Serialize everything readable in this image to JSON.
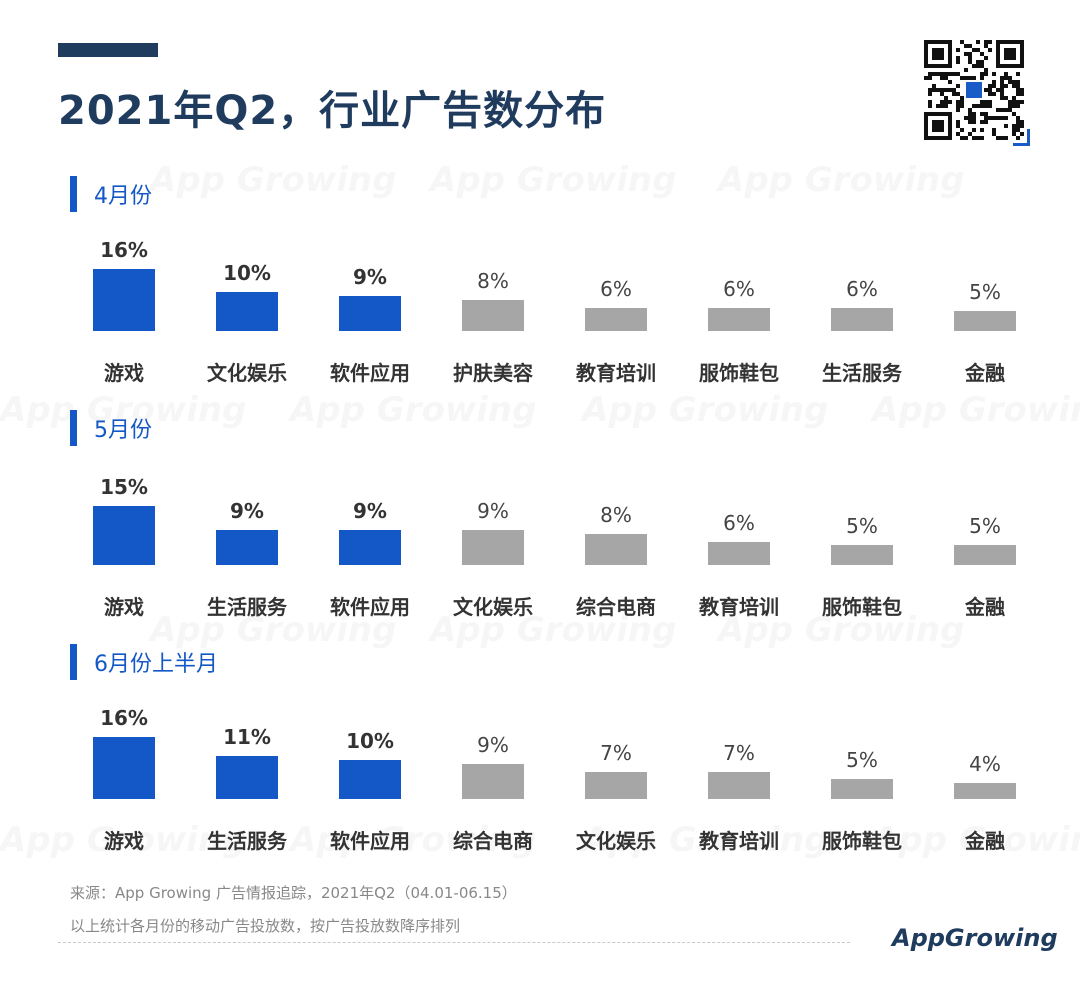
{
  "title": "2021年Q2，行业广告数分布",
  "watermark_text": "App Growing",
  "colors": {
    "highlight": "#1458c7",
    "other": "#a6a6a6",
    "title": "#1f3b5e"
  },
  "chart_data": [
    {
      "type": "bar",
      "title": "4月份",
      "categories": [
        "游戏",
        "文化娱乐",
        "软件应用",
        "护肤美容",
        "教育培训",
        "服饰鞋包",
        "生活服务",
        "金融"
      ],
      "values": [
        16,
        10,
        9,
        8,
        6,
        6,
        6,
        5
      ],
      "labels": [
        "16%",
        "10%",
        "9%",
        "8%",
        "6%",
        "6%",
        "6%",
        "5%"
      ],
      "unit": "%",
      "highlight_top": 3
    },
    {
      "type": "bar",
      "title": "5月份",
      "categories": [
        "游戏",
        "生活服务",
        "软件应用",
        "文化娱乐",
        "综合电商",
        "教育培训",
        "服饰鞋包",
        "金融"
      ],
      "values": [
        15,
        9,
        9,
        9,
        8,
        6,
        5,
        5
      ],
      "labels": [
        "15%",
        "9%",
        "9%",
        "9%",
        "8%",
        "6%",
        "5%",
        "5%"
      ],
      "unit": "%",
      "highlight_top": 3
    },
    {
      "type": "bar",
      "title": "6月份上半月",
      "categories": [
        "游戏",
        "生活服务",
        "软件应用",
        "综合电商",
        "文化娱乐",
        "教育培训",
        "服饰鞋包",
        "金融"
      ],
      "values": [
        16,
        11,
        10,
        9,
        7,
        7,
        5,
        4
      ],
      "labels": [
        "16%",
        "11%",
        "10%",
        "9%",
        "7%",
        "7%",
        "5%",
        "4%"
      ],
      "unit": "%",
      "highlight_top": 3
    }
  ],
  "footer": {
    "source": "来源：App Growing 广告情报追踪，2021年Q2（04.01-06.15）",
    "note": "以上统计各月份的移动广告投放数，按广告投放数降序排列",
    "brand": "AppGrowing"
  }
}
